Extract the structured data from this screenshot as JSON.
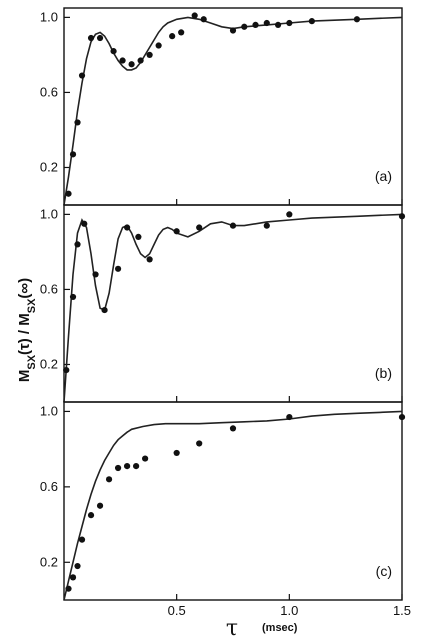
{
  "chart_data": [
    {
      "type": "scatter",
      "panel_label": "(a)",
      "xlim": [
        0,
        1.5
      ],
      "ylim": [
        0,
        1.05
      ],
      "y_ticks": [
        0.2,
        0.6,
        1.0
      ],
      "y_tick_labels": [
        "0.2",
        "0.6",
        "1.0"
      ],
      "x_ticks": [
        0.5,
        1.0,
        1.5
      ],
      "x_tick_labels": [],
      "points": {
        "x": [
          0.02,
          0.04,
          0.06,
          0.08,
          0.12,
          0.16,
          0.22,
          0.26,
          0.3,
          0.34,
          0.38,
          0.42,
          0.48,
          0.52,
          0.58,
          0.62,
          0.75,
          0.8,
          0.85,
          0.9,
          0.95,
          1.0,
          1.1,
          1.3
        ],
        "y": [
          0.06,
          0.27,
          0.44,
          0.69,
          0.89,
          0.89,
          0.82,
          0.77,
          0.75,
          0.77,
          0.8,
          0.85,
          0.9,
          0.92,
          1.01,
          0.99,
          0.93,
          0.95,
          0.96,
          0.97,
          0.96,
          0.97,
          0.98,
          0.99
        ]
      },
      "curve": {
        "x": [
          0,
          0.02,
          0.04,
          0.06,
          0.08,
          0.1,
          0.12,
          0.14,
          0.16,
          0.18,
          0.2,
          0.22,
          0.24,
          0.26,
          0.28,
          0.3,
          0.32,
          0.34,
          0.36,
          0.38,
          0.4,
          0.42,
          0.44,
          0.46,
          0.5,
          0.55,
          0.6,
          0.65,
          0.7,
          0.75,
          0.8,
          0.9,
          1.0,
          1.1,
          1.2,
          1.3,
          1.4,
          1.5
        ],
        "y": [
          0,
          0.15,
          0.32,
          0.5,
          0.65,
          0.78,
          0.87,
          0.91,
          0.92,
          0.9,
          0.86,
          0.81,
          0.77,
          0.74,
          0.72,
          0.72,
          0.73,
          0.76,
          0.8,
          0.84,
          0.88,
          0.92,
          0.95,
          0.97,
          0.99,
          1.0,
          0.99,
          0.97,
          0.95,
          0.94,
          0.95,
          0.96,
          0.97,
          0.98,
          0.985,
          0.99,
          0.995,
          1.0
        ]
      }
    },
    {
      "type": "scatter",
      "panel_label": "(b)",
      "xlim": [
        0,
        1.5
      ],
      "ylim": [
        0,
        1.05
      ],
      "y_ticks": [
        0.2,
        0.6,
        1.0
      ],
      "y_tick_labels": [
        "0.2",
        "0.6",
        "1.0"
      ],
      "x_ticks": [
        0.5,
        1.0,
        1.5
      ],
      "x_tick_labels": [],
      "points": {
        "x": [
          0.01,
          0.04,
          0.06,
          0.09,
          0.14,
          0.18,
          0.24,
          0.28,
          0.33,
          0.38,
          0.5,
          0.6,
          0.75,
          0.9,
          1.0,
          1.5
        ],
        "y": [
          0.17,
          0.56,
          0.84,
          0.95,
          0.68,
          0.49,
          0.71,
          0.93,
          0.88,
          0.76,
          0.91,
          0.93,
          0.94,
          0.94,
          1.0,
          0.99
        ]
      },
      "curve": {
        "x": [
          0,
          0.02,
          0.04,
          0.06,
          0.08,
          0.1,
          0.12,
          0.14,
          0.16,
          0.18,
          0.2,
          0.22,
          0.24,
          0.26,
          0.28,
          0.3,
          0.32,
          0.34,
          0.36,
          0.38,
          0.4,
          0.42,
          0.44,
          0.46,
          0.48,
          0.5,
          0.55,
          0.6,
          0.65,
          0.7,
          0.75,
          0.8,
          0.9,
          1.0,
          1.1,
          1.2,
          1.3,
          1.4,
          1.5
        ],
        "y": [
          0,
          0.35,
          0.68,
          0.9,
          0.97,
          0.93,
          0.79,
          0.62,
          0.5,
          0.49,
          0.58,
          0.73,
          0.87,
          0.93,
          0.94,
          0.9,
          0.84,
          0.79,
          0.77,
          0.79,
          0.84,
          0.89,
          0.92,
          0.93,
          0.92,
          0.9,
          0.88,
          0.91,
          0.95,
          0.96,
          0.94,
          0.94,
          0.96,
          0.97,
          0.98,
          0.985,
          0.99,
          0.995,
          1.0
        ]
      }
    },
    {
      "type": "scatter",
      "panel_label": "(c)",
      "xlim": [
        0,
        1.5
      ],
      "ylim": [
        0,
        1.05
      ],
      "y_ticks": [
        0.2,
        0.6,
        1.0
      ],
      "y_tick_labels": [
        "0.2",
        "0.6",
        "1.0"
      ],
      "x_ticks": [
        0.5,
        1.0,
        1.5
      ],
      "x_tick_labels": [
        "0.5",
        "1.0",
        "1.5"
      ],
      "points": {
        "x": [
          0.02,
          0.04,
          0.06,
          0.08,
          0.12,
          0.16,
          0.2,
          0.24,
          0.28,
          0.32,
          0.36,
          0.5,
          0.6,
          0.75,
          1.0,
          1.5
        ],
        "y": [
          0.06,
          0.12,
          0.18,
          0.32,
          0.45,
          0.5,
          0.64,
          0.7,
          0.71,
          0.71,
          0.75,
          0.78,
          0.83,
          0.91,
          0.97,
          0.97
        ]
      },
      "curve": {
        "x": [
          0,
          0.02,
          0.04,
          0.06,
          0.08,
          0.1,
          0.12,
          0.14,
          0.16,
          0.18,
          0.2,
          0.22,
          0.24,
          0.26,
          0.28,
          0.3,
          0.35,
          0.4,
          0.45,
          0.5,
          0.6,
          0.7,
          0.8,
          0.9,
          1.0,
          1.1,
          1.2,
          1.3,
          1.4,
          1.5
        ],
        "y": [
          0,
          0.1,
          0.2,
          0.3,
          0.39,
          0.48,
          0.56,
          0.63,
          0.69,
          0.74,
          0.78,
          0.82,
          0.85,
          0.87,
          0.89,
          0.905,
          0.92,
          0.93,
          0.935,
          0.935,
          0.935,
          0.94,
          0.945,
          0.95,
          0.96,
          0.975,
          0.985,
          0.99,
          0.995,
          1.0
        ]
      }
    }
  ],
  "axes_labels": {
    "y_label": "M_SX(τ) / M_SX(∞)",
    "y_label_parts": {
      "m1": "M",
      "s1": "SX",
      "arg1": "(τ) / ",
      "m2": "M",
      "s2": "SX",
      "arg2": "(∞)"
    },
    "x_label_symbol": "τ",
    "x_label_unit": "(msec)"
  }
}
